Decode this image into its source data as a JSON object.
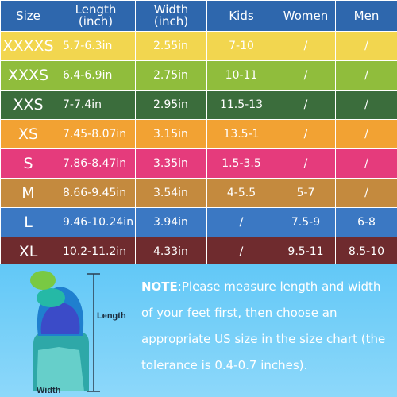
{
  "table": {
    "headers": [
      "Size",
      "Length\n(inch)",
      "Width\n(inch)",
      "Kids",
      "Women",
      "Men"
    ],
    "rows": [
      {
        "size": "XXXXS",
        "length": "5.7-6.3in",
        "width": "2.55in",
        "kids": "7-10",
        "women": "/",
        "men": "/",
        "color": "#f2d64f"
      },
      {
        "size": "XXXS",
        "length": "6.4-6.9in",
        "width": "2.75in",
        "kids": "10-11",
        "women": "/",
        "men": "/",
        "color": "#90bd3c"
      },
      {
        "size": "XXS",
        "length": "7-7.4in",
        "width": "2.95in",
        "kids": "11.5-13",
        "women": "/",
        "men": "/",
        "color": "#3b6d3c"
      },
      {
        "size": "XS",
        "length": "7.45-8.07in",
        "width": "3.15in",
        "kids": "13.5-1",
        "women": "/",
        "men": "/",
        "color": "#f2a233"
      },
      {
        "size": "S",
        "length": "7.86-8.47in",
        "width": "3.35in",
        "kids": "1.5-3.5",
        "women": "/",
        "men": "/",
        "color": "#e53b7c"
      },
      {
        "size": "M",
        "length": "8.66-9.45in",
        "width": "3.54in",
        "kids": "4-5.5",
        "women": "5-7",
        "men": "/",
        "color": "#c48a3e"
      },
      {
        "size": "L",
        "length": "9.46-10.24in",
        "width": "3.94in",
        "kids": "/",
        "women": "7.5-9",
        "men": "6-8",
        "color": "#3b78c3"
      },
      {
        "size": "XL",
        "length": "10.2-11.2in",
        "width": "4.33in",
        "kids": "/",
        "women": "9.5-11",
        "men": "8.5-10",
        "color": "#6f2b2e"
      }
    ]
  },
  "colors": {
    "header_bg": "#2e67ad",
    "panel_bg": "#62c8f7",
    "text": "#ffffff"
  },
  "illustration": {
    "length_label": "Length",
    "width_label": "Width"
  },
  "note": {
    "label": "NOTE",
    "text": ":Please measure length and width of your feet first, then choose an appropriate US size in the size chart (the tolerance is 0.4-0.7 inches)."
  }
}
